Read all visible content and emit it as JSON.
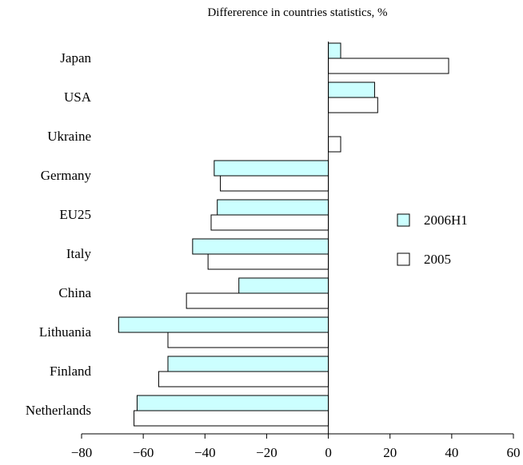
{
  "chart_data": {
    "type": "bar",
    "orientation": "horizontal",
    "title": "Differerence in countries statistics, %",
    "xlabel": "",
    "ylabel": "",
    "xlim": [
      -80,
      60
    ],
    "xticks": [
      -80,
      -60,
      -40,
      -20,
      0,
      20,
      40,
      60
    ],
    "grid": false,
    "legend_position": "right",
    "categories": [
      "Japan",
      "USA",
      "Ukraine",
      "Germany",
      "EU25",
      "Italy",
      "China",
      "Lithuania",
      "Finland",
      "Netherlands"
    ],
    "series": [
      {
        "name": "2006H1",
        "color": "#ccffff",
        "values": [
          4,
          15,
          0,
          -37,
          -36,
          -44,
          -29,
          -68,
          -52,
          -62
        ]
      },
      {
        "name": "2005",
        "color": "#ffffff",
        "values": [
          39,
          16,
          4,
          -35,
          -38,
          -39,
          -46,
          -52,
          -55,
          -63
        ]
      }
    ]
  }
}
